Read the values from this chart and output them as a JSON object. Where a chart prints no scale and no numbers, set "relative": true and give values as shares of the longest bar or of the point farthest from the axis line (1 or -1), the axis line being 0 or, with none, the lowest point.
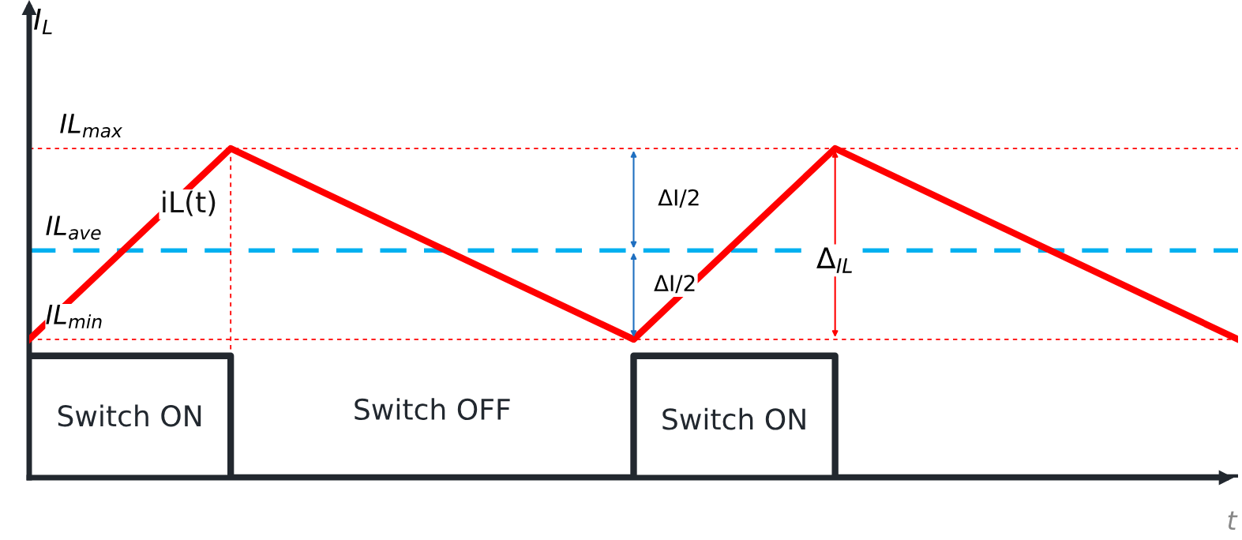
{
  "chart_data": {
    "type": "line",
    "relative": true,
    "xlabel": "t",
    "ylabel": "I$_{L}$",
    "categories": [
      null,
      null,
      null,
      null,
      null,
      null,
      null
    ],
    "series": [
      {
        "name": "iL(t)",
        "color": "#ff0000",
        "values": [
          0.42,
          1,
          0.71,
          0.42,
          1,
          0.71,
          0.42
        ]
      },
      {
        "type": "step",
        "color": "#22282f",
        "values": [
          0.37,
          0,
          0,
          0.37,
          0,
          0,
          0
        ]
      }
    ],
    "ref_lines": [
      {
        "axis": "y",
        "value": 1,
        "label": "IL$_{max}$",
        "color": "#ff0000",
        "line_style": "dotted"
      },
      {
        "axis": "y",
        "value": 0.69,
        "label": "IL$_{ave}$",
        "color": "#00b0f0",
        "line_style": "dashed"
      },
      {
        "axis": "y",
        "value": 0.42,
        "label": "IL$_{min}$",
        "color": "#ff0000",
        "line_style": "dotted"
      }
    ],
    "annotations": [
      "Switch ON",
      "Switch OFF",
      "Switch ON",
      "ΔI/2",
      "ΔI/2",
      "Δ$_{IL}$"
    ],
    "legend": false,
    "grid": false,
    "marker": "none",
    "line_style": "solid"
  }
}
